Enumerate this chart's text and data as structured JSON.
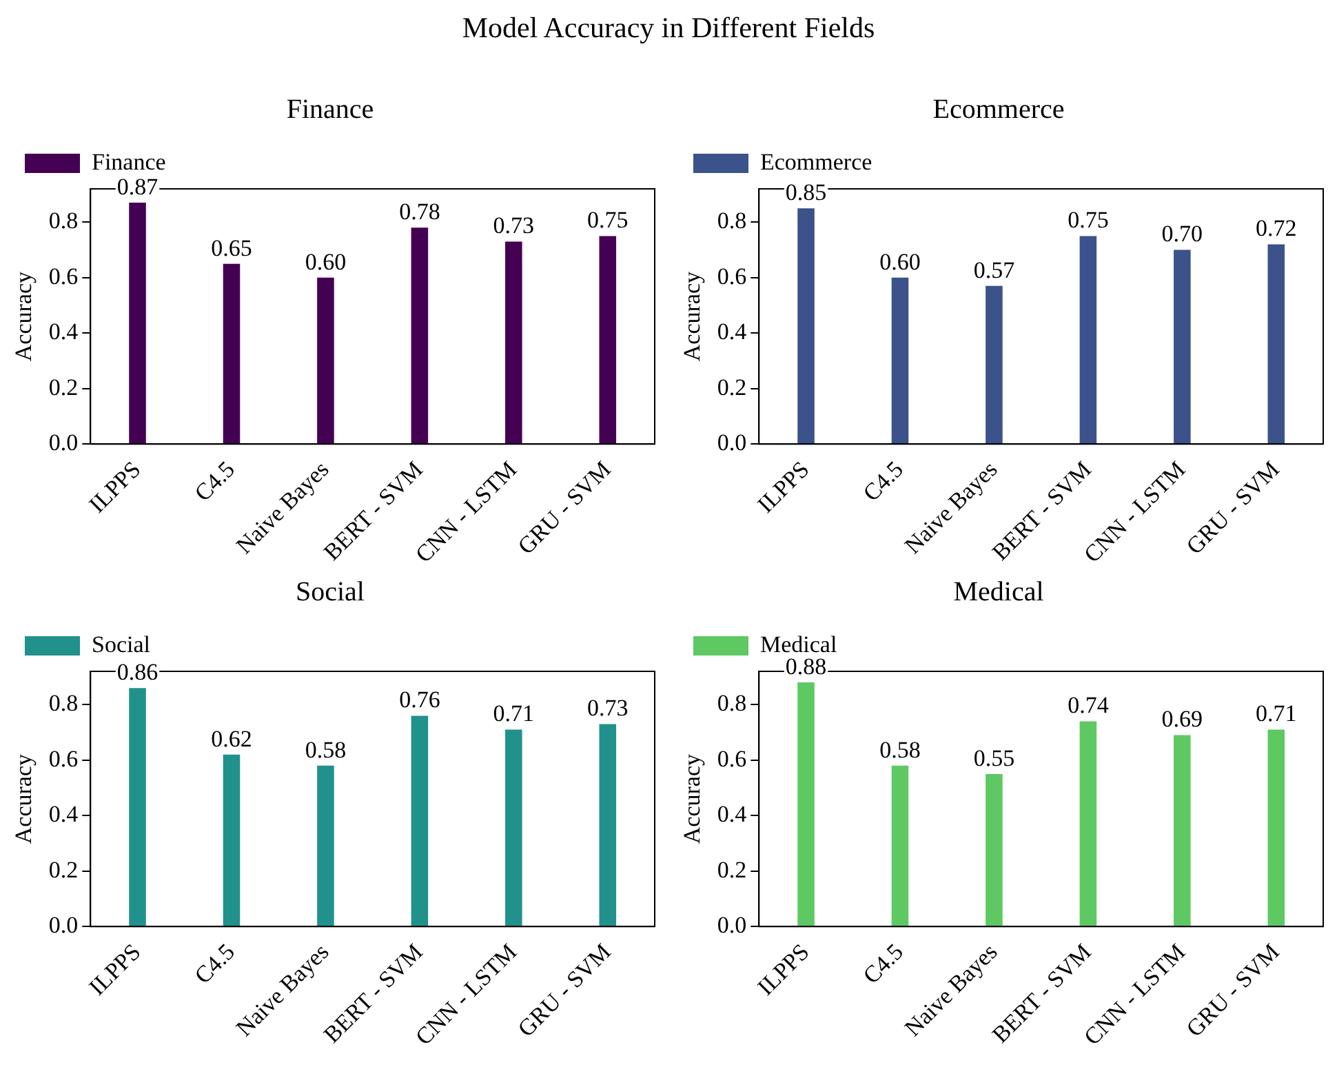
{
  "chart_data": [
    {
      "type": "other",
      "title": "Model Accuracy in Different Fields"
    },
    {
      "type": "bar",
      "title": "Finance",
      "ylabel": "Accuracy",
      "categories": [
        "ILPPS",
        "C4.5",
        "Naive Bayes",
        "BERT - SVM",
        "CNN - LSTM",
        "GRU - SVM"
      ],
      "series": [
        {
          "name": "Finance",
          "color": "#440154",
          "values": [
            0.87,
            0.65,
            0.6,
            0.78,
            0.73,
            0.75
          ],
          "value_labels": [
            "0.87",
            "0.65",
            "0.60",
            "0.78",
            "0.73",
            "0.75"
          ]
        }
      ],
      "ylim": [
        0,
        0.92
      ],
      "yticks": [
        {
          "value": 0,
          "label": "0.0"
        },
        {
          "value": 0.2,
          "label": "0.2"
        },
        {
          "value": 0.4,
          "label": "0.4"
        },
        {
          "value": 0.6,
          "label": "0.6"
        },
        {
          "value": 0.8,
          "label": "0.8"
        }
      ],
      "legend": "top left"
    },
    {
      "type": "bar",
      "title": "Ecommerce",
      "ylabel": "Accuracy",
      "categories": [
        "ILPPS",
        "C4.5",
        "Naive Bayes",
        "BERT - SVM",
        "CNN - LSTM",
        "GRU - SVM"
      ],
      "series": [
        {
          "name": "Ecommerce",
          "color": "#3b528b",
          "values": [
            0.85,
            0.6,
            0.57,
            0.75,
            0.7,
            0.72
          ],
          "value_labels": [
            "0.85",
            "0.60",
            "0.57",
            "0.75",
            "0.70",
            "0.72"
          ]
        }
      ],
      "ylim": [
        0,
        0.92
      ],
      "yticks": [
        {
          "value": 0,
          "label": "0.0"
        },
        {
          "value": 0.2,
          "label": "0.2"
        },
        {
          "value": 0.4,
          "label": "0.4"
        },
        {
          "value": 0.6,
          "label": "0.6"
        },
        {
          "value": 0.8,
          "label": "0.8"
        }
      ],
      "legend": "top left"
    },
    {
      "type": "bar",
      "title": "Social",
      "ylabel": "Accuracy",
      "categories": [
        "ILPPS",
        "C4.5",
        "Naive Bayes",
        "BERT - SVM",
        "CNN - LSTM",
        "GRU - SVM"
      ],
      "series": [
        {
          "name": "Social",
          "color": "#21918c",
          "values": [
            0.86,
            0.62,
            0.58,
            0.76,
            0.71,
            0.73
          ],
          "value_labels": [
            "0.86",
            "0.62",
            "0.58",
            "0.76",
            "0.71",
            "0.73"
          ]
        }
      ],
      "ylim": [
        0,
        0.92
      ],
      "yticks": [
        {
          "value": 0,
          "label": "0.0"
        },
        {
          "value": 0.2,
          "label": "0.2"
        },
        {
          "value": 0.4,
          "label": "0.4"
        },
        {
          "value": 0.6,
          "label": "0.6"
        },
        {
          "value": 0.8,
          "label": "0.8"
        }
      ],
      "legend": "top left"
    },
    {
      "type": "bar",
      "title": "Medical",
      "ylabel": "Accuracy",
      "categories": [
        "ILPPS",
        "C4.5",
        "Naive Bayes",
        "BERT - SVM",
        "CNN - LSTM",
        "GRU - SVM"
      ],
      "series": [
        {
          "name": "Medical",
          "color": "#5ec962",
          "values": [
            0.88,
            0.58,
            0.55,
            0.74,
            0.69,
            0.71
          ],
          "value_labels": [
            "0.88",
            "0.58",
            "0.55",
            "0.74",
            "0.69",
            "0.71"
          ]
        }
      ],
      "ylim": [
        0,
        0.92
      ],
      "yticks": [
        {
          "value": 0,
          "label": "0.0"
        },
        {
          "value": 0.2,
          "label": "0.2"
        },
        {
          "value": 0.4,
          "label": "0.4"
        },
        {
          "value": 0.6,
          "label": "0.6"
        },
        {
          "value": 0.8,
          "label": "0.8"
        }
      ],
      "legend": "top left"
    }
  ]
}
